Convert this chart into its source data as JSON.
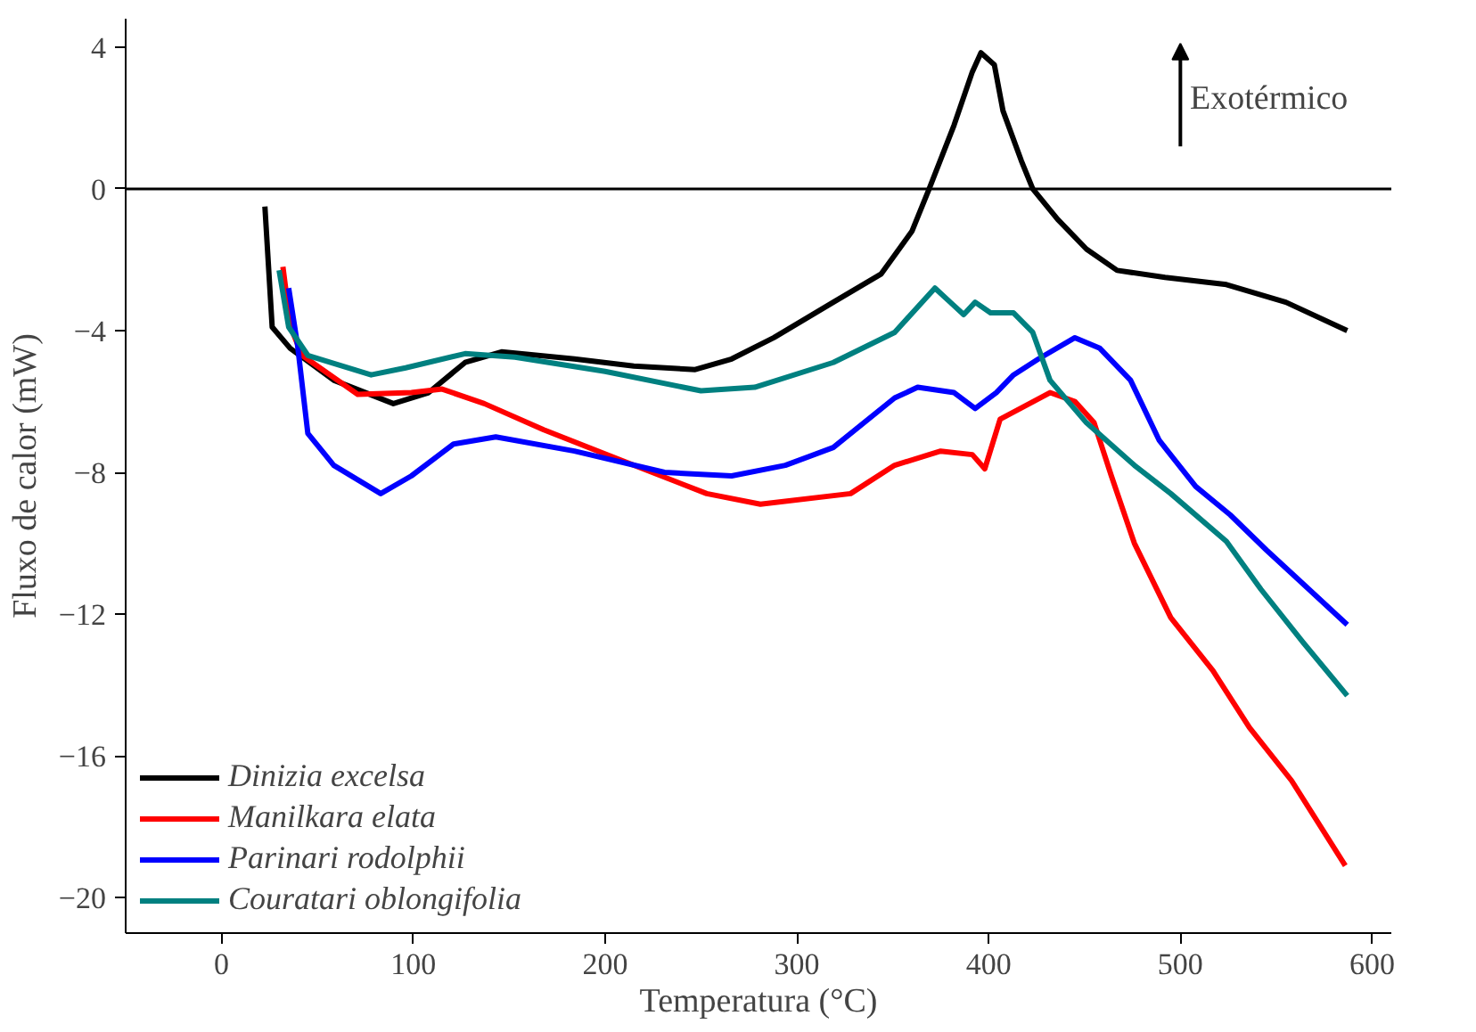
{
  "chart_data": {
    "type": "line",
    "xlabel": "Temperatura (°C)",
    "ylabel": "Fluxo de calor (mW)",
    "xlim": [
      -50,
      610
    ],
    "ylim": [
      -21,
      4.8
    ],
    "xticks": [
      0,
      100,
      200,
      300,
      400,
      500,
      600
    ],
    "yticks": [
      -20,
      -16,
      -12,
      -8,
      -4,
      0,
      4
    ],
    "grid": false,
    "legend": "bottom left",
    "line_style": "solid",
    "marker": "none",
    "ref_lines": [
      {
        "axis": "y",
        "value": 0,
        "color": "#000000"
      }
    ],
    "annotations": [
      "Exotérmico"
    ],
    "series": [
      {
        "name": "Dinizia excelsa",
        "color": "#000000",
        "x": [
          22.6,
          26.4,
          35.8,
          58.5,
          89.6,
          108,
          127,
          146,
          184,
          215,
          247,
          266,
          288,
          319,
          344,
          360,
          369,
          382,
          391.5,
          396,
          403,
          407.5,
          417,
          423,
          436,
          451,
          467,
          492,
          524,
          555,
          587
        ],
        "values": [
          -0.5,
          -3.9,
          -4.5,
          -5.4,
          -6.06,
          -5.75,
          -4.9,
          -4.6,
          -4.8,
          -5.0,
          -5.1,
          -4.8,
          -4.2,
          -3.2,
          -2.4,
          -1.2,
          0,
          1.8,
          3.3,
          3.84,
          3.5,
          2.2,
          0.8,
          0,
          -0.86,
          -1.7,
          -2.3,
          -2.5,
          -2.7,
          -3.2,
          -4.0
        ]
      },
      {
        "name": "Manilkara elata",
        "color": "#ff0000",
        "x": [
          32,
          36,
          42,
          71,
          99,
          115,
          137,
          168,
          215,
          253,
          281,
          328,
          351,
          375,
          391.5,
          398,
          406,
          420,
          432,
          445,
          455,
          464,
          476,
          495,
          517,
          536,
          558,
          586
        ],
        "values": [
          -2.2,
          -3.9,
          -4.7,
          -5.8,
          -5.75,
          -5.65,
          -6.06,
          -6.8,
          -7.8,
          -8.6,
          -8.9,
          -8.6,
          -7.8,
          -7.4,
          -7.5,
          -7.9,
          -6.5,
          -6.1,
          -5.75,
          -6.0,
          -6.6,
          -8.1,
          -10.0,
          -12.1,
          -13.6,
          -15.2,
          -16.7,
          -19.1
        ]
      },
      {
        "name": "Parinari rodolphii",
        "color": "#0000ff",
        "x": [
          35,
          39.6,
          45,
          58.5,
          83,
          99,
          121,
          143,
          184,
          231,
          266,
          294,
          319,
          351,
          363,
          382,
          393,
          404,
          413,
          426,
          445,
          458,
          474,
          489,
          508,
          526,
          545,
          561,
          587
        ],
        "values": [
          -2.8,
          -4.4,
          -6.9,
          -7.8,
          -8.6,
          -8.1,
          -7.2,
          -7.0,
          -7.4,
          -8.0,
          -8.1,
          -7.8,
          -7.3,
          -5.9,
          -5.6,
          -5.75,
          -6.2,
          -5.75,
          -5.25,
          -4.8,
          -4.2,
          -4.5,
          -5.4,
          -7.1,
          -8.4,
          -9.2,
          -10.2,
          -11.0,
          -12.3
        ]
      },
      {
        "name": "Couratari oblongifolia",
        "color": "#008080",
        "x": [
          30,
          35,
          45,
          78,
          96,
          127,
          153,
          200,
          250,
          278,
          319,
          351,
          372,
          380,
          387,
          393,
          401,
          413,
          423,
          432,
          451,
          476,
          495,
          524,
          542,
          564,
          587
        ],
        "values": [
          -2.3,
          -3.9,
          -4.7,
          -5.25,
          -5.05,
          -4.65,
          -4.75,
          -5.15,
          -5.7,
          -5.6,
          -4.9,
          -4.05,
          -2.8,
          -3.2,
          -3.55,
          -3.2,
          -3.5,
          -3.5,
          -4.05,
          -5.4,
          -6.6,
          -7.8,
          -8.6,
          -9.95,
          -11.3,
          -12.8,
          -14.3
        ]
      }
    ]
  }
}
